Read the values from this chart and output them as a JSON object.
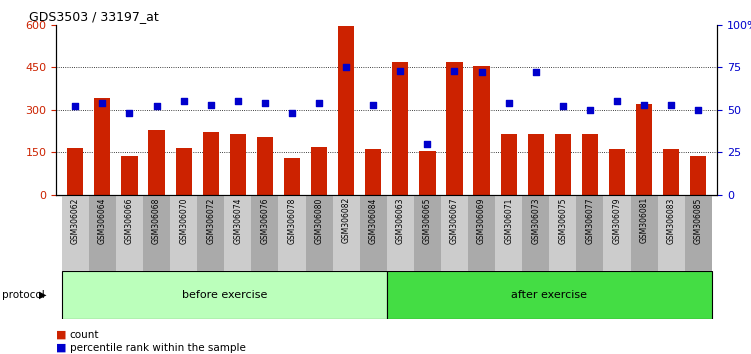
{
  "title": "GDS3503 / 33197_at",
  "samples": [
    "GSM306062",
    "GSM306064",
    "GSM306066",
    "GSM306068",
    "GSM306070",
    "GSM306072",
    "GSM306074",
    "GSM306076",
    "GSM306078",
    "GSM306080",
    "GSM306082",
    "GSM306084",
    "GSM306063",
    "GSM306065",
    "GSM306067",
    "GSM306069",
    "GSM306071",
    "GSM306073",
    "GSM306075",
    "GSM306077",
    "GSM306079",
    "GSM306081",
    "GSM306083",
    "GSM306085"
  ],
  "counts": [
    165,
    340,
    135,
    230,
    165,
    220,
    215,
    205,
    130,
    170,
    595,
    160,
    470,
    155,
    470,
    455,
    215,
    215,
    215,
    215,
    160,
    320,
    160,
    135
  ],
  "percentiles": [
    52,
    54,
    48,
    52,
    55,
    53,
    55,
    54,
    48,
    54,
    75,
    53,
    73,
    30,
    73,
    72,
    54,
    72,
    52,
    50,
    55,
    53,
    53,
    50
  ],
  "before_exercise_count": 12,
  "after_exercise_count": 12,
  "bar_color": "#cc2200",
  "dot_color": "#0000cc",
  "before_color": "#bbffbb",
  "after_color": "#44dd44",
  "ylim_left": [
    0,
    600
  ],
  "ylim_right": [
    0,
    100
  ],
  "yticks_left": [
    0,
    150,
    300,
    450,
    600
  ],
  "yticks_right": [
    0,
    25,
    50,
    75,
    100
  ]
}
